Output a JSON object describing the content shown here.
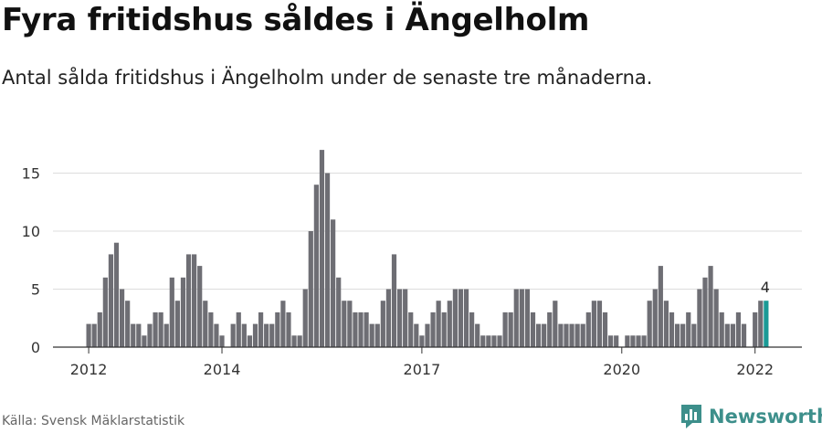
{
  "header": {
    "title": "Fyra fritidshus såldes i Ängelholm",
    "subtitle": "Antal sålda fritidshus i Ängelholm under de senaste tre månaderna."
  },
  "footer": {
    "source": "Källa: Svensk Mäklarstatistik",
    "brand": "Newsworthy"
  },
  "colors": {
    "bar": "#6e6e74",
    "highlight": "#1a9a96",
    "grid": "#dddddd",
    "brand": "#3d8f8b"
  },
  "chart_data": {
    "type": "bar",
    "x_start": "2012-01",
    "x_unit": "month",
    "yticks": [
      0,
      5,
      10,
      15
    ],
    "ylim": [
      0,
      17.5
    ],
    "xticks": [
      "2012",
      "2014",
      "2017",
      "2020",
      "2022"
    ],
    "xtick_months": [
      "2012-01",
      "2014-01",
      "2017-01",
      "2020-01",
      "2022-01"
    ],
    "highlight_label": "4",
    "values": [
      2,
      2,
      3,
      6,
      8,
      9,
      5,
      4,
      2,
      2,
      1,
      2,
      3,
      3,
      2,
      6,
      4,
      6,
      8,
      8,
      7,
      4,
      3,
      2,
      1,
      0,
      2,
      3,
      2,
      1,
      2,
      3,
      2,
      2,
      3,
      4,
      3,
      1,
      1,
      5,
      10,
      14,
      17,
      15,
      11,
      6,
      4,
      4,
      3,
      3,
      3,
      2,
      2,
      4,
      5,
      8,
      5,
      5,
      3,
      2,
      1,
      2,
      3,
      4,
      3,
      4,
      5,
      5,
      5,
      3,
      2,
      1,
      1,
      1,
      1,
      3,
      3,
      5,
      5,
      5,
      3,
      2,
      2,
      3,
      4,
      2,
      2,
      2,
      2,
      2,
      3,
      4,
      4,
      3,
      1,
      1,
      0,
      1,
      1,
      1,
      1,
      4,
      5,
      7,
      4,
      3,
      2,
      2,
      3,
      2,
      5,
      6,
      7,
      5,
      3,
      2,
      2,
      3,
      2,
      0,
      3,
      4,
      4
    ]
  }
}
